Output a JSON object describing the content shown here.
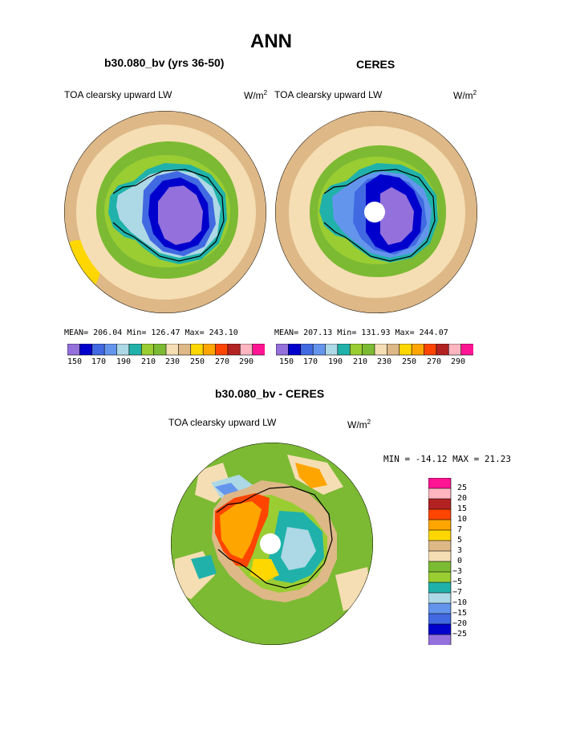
{
  "page_title": "ANN",
  "colors": {
    "level_palette": [
      "#9370db",
      "#0000cd",
      "#4169e1",
      "#6495ed",
      "#add8e6",
      "#20b2aa",
      "#9acd32",
      "#7cba33",
      "#f5deb3",
      "#deb887",
      "#ffd700",
      "#ffa500",
      "#ff4500",
      "#b22222",
      "#ffb6c1",
      "#ff1493"
    ],
    "diff_palette": [
      "#9370db",
      "#0000cd",
      "#4169e1",
      "#6495ed",
      "#add8e6",
      "#20b2aa",
      "#9acd32",
      "#7cba33",
      "#f5deb3",
      "#deb887",
      "#ffd700",
      "#ffa500",
      "#ff4500",
      "#b22222",
      "#ffb6c1",
      "#ff1493"
    ],
    "coast": "#000000",
    "pole_hole": "#ffffff"
  },
  "panels": [
    {
      "title": "b30.080_bv (yrs 36-50)",
      "variable": "TOA clearsky upward LW",
      "units_base": "W/m",
      "units_exp": "2",
      "stats": "MEAN= 206.04  Min= 126.47  Max= 243.10"
    },
    {
      "title": "CERES",
      "variable": "TOA clearsky upward LW",
      "units_base": "W/m",
      "units_exp": "2",
      "stats": "MEAN= 207.13  Min= 131.93  Max= 244.07"
    }
  ],
  "level_colorbar": {
    "labels": [
      "150",
      "170",
      "190",
      "210",
      "230",
      "250",
      "270",
      "290"
    ]
  },
  "diff_panel": {
    "title": "b30.080_bv - CERES",
    "variable": "TOA clearsky upward LW",
    "units_base": "W/m",
    "units_exp": "2",
    "minmax": "MIN = -14.12 MAX =  21.23",
    "colorbar_labels": [
      "25",
      "20",
      "15",
      "10",
      "7",
      "5",
      "3",
      "0",
      "−3",
      "−5",
      "−7",
      "−10",
      "−15",
      "−20",
      "−25"
    ]
  }
}
